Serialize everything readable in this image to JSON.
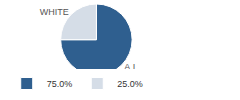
{
  "chart_data": {
    "type": "pie",
    "categories": [
      "A.I.",
      "WHITE"
    ],
    "values": [
      75,
      25
    ],
    "value_labels": [
      "75.0%",
      "25.0%"
    ],
    "colors": [
      "#2f5f8f",
      "#d5dde7"
    ],
    "legend": "bottom"
  }
}
